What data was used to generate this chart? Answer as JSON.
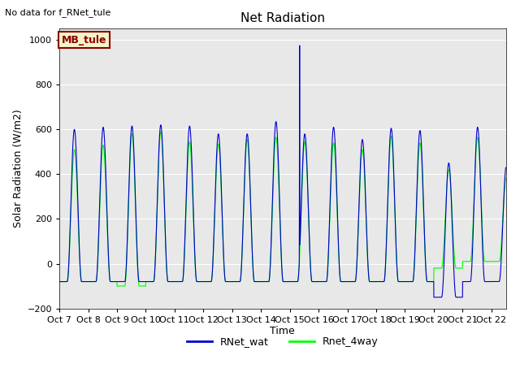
{
  "title": "Net Radiation",
  "subtitle": "No data for f_RNet_tule",
  "ylabel": "Solar Radiation (W/m2)",
  "xlabel": "Time",
  "ylim": [
    -200,
    1050
  ],
  "yticks": [
    -200,
    0,
    200,
    400,
    600,
    800,
    1000
  ],
  "background_color": "#e8e8e8",
  "legend_box_label": "MB_tule",
  "legend_box_color": "#f5f5c8",
  "legend_box_edge": "#8b0000",
  "line1_color": "#0000cc",
  "line2_color": "#00ff00",
  "line1_label": "RNet_wat",
  "line2_label": "Rnet_4way",
  "xtick_labels": [
    "Oct 7",
    "Oct 8",
    "Oct 9",
    "Oct 10",
    "Oct 11",
    "Oct 12",
    "Oct 13",
    "Oct 14",
    "Oct 15",
    "Oct 16",
    "Oct 17",
    "Oct 18",
    "Oct 19",
    "Oct 20",
    "Oct 21",
    "Oct 22"
  ],
  "n_days": 15.5,
  "figsize": [
    6.4,
    4.8
  ],
  "dpi": 100,
  "peaks_blue": [
    600,
    610,
    615,
    620,
    615,
    580,
    580,
    635,
    580,
    610,
    555,
    605,
    595,
    450,
    610,
    440
  ],
  "peaks_green": [
    510,
    530,
    580,
    590,
    545,
    535,
    555,
    565,
    545,
    540,
    510,
    570,
    540,
    420,
    565,
    390
  ],
  "night_blue": [
    -80,
    -80,
    -80,
    -80,
    -80,
    -80,
    -80,
    -80,
    -80,
    -80,
    -80,
    -80,
    -80,
    -150,
    -80,
    -80
  ],
  "night_green": [
    -80,
    -80,
    -100,
    -80,
    -80,
    -80,
    -80,
    -80,
    -80,
    -80,
    -80,
    -80,
    -80,
    -20,
    10,
    10
  ],
  "day_start": 6.5,
  "day_end": 18.5,
  "spike_time_hours": 200.2,
  "spike_value": 975
}
